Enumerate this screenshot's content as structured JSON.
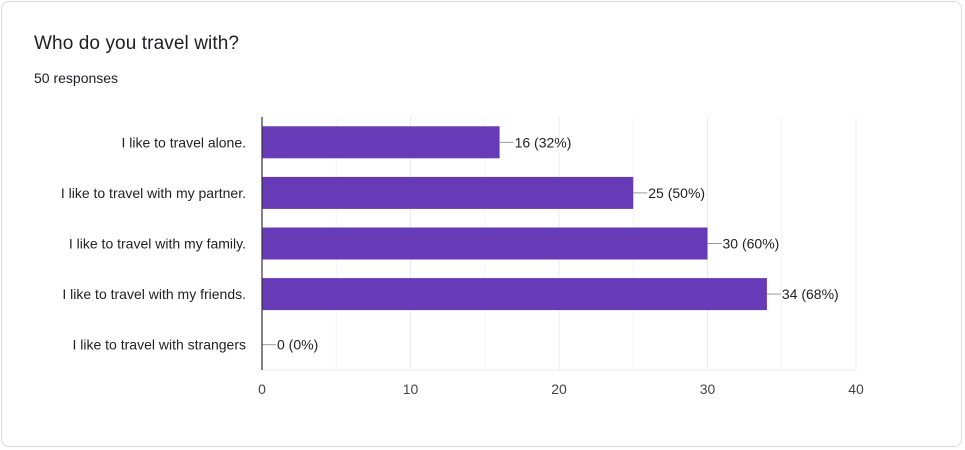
{
  "card": {
    "title": "Who do you travel with?",
    "responses": "50 responses"
  },
  "colors": {
    "bar": "#673ab7",
    "grid": "#ebebeb",
    "axis": "#333333",
    "leader": "#999999"
  },
  "chart_data": {
    "type": "bar",
    "orientation": "horizontal",
    "title": "Who do you travel with?",
    "subtitle": "50 responses",
    "categories": [
      "I like to travel alone.",
      "I like to travel with my partner.",
      "I like to travel with my family.",
      "I like to travel with my friends.",
      "I like to travel with strangers"
    ],
    "values": [
      16,
      25,
      30,
      34,
      0
    ],
    "data_labels": [
      "16 (32%)",
      "25 (50%)",
      "30 (60%)",
      "34 (68%)",
      "0 (0%)"
    ],
    "xlim": [
      0,
      40
    ],
    "xticks": [
      0,
      10,
      20,
      30,
      40
    ],
    "grid": true,
    "legend": "none"
  }
}
